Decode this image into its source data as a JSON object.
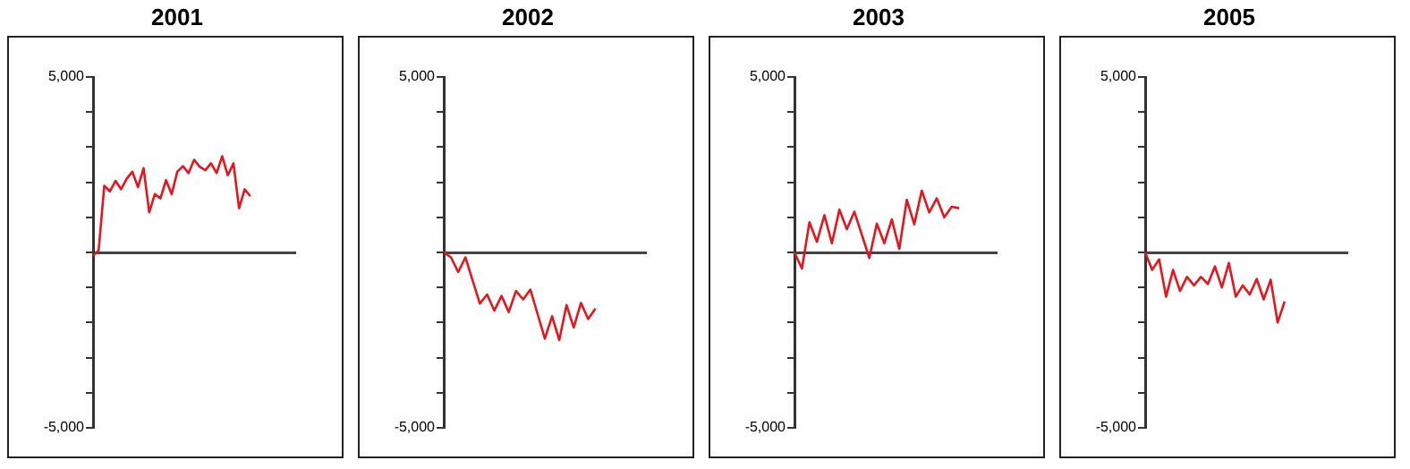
{
  "chart_data": [
    {
      "type": "line",
      "title": "2001",
      "color": "#e8141c",
      "marker": "none",
      "line_style": "solid",
      "tick_labels": "y",
      "ylim": [
        -5000,
        5000
      ],
      "yticks": [
        {
          "value": 5000,
          "label": "5,000"
        },
        {
          "value": 4000,
          "label": null
        },
        {
          "value": 3000,
          "label": null
        },
        {
          "value": 2000,
          "label": null
        },
        {
          "value": 1000,
          "label": null
        },
        {
          "value": 0,
          "label": null
        },
        {
          "value": -1000,
          "label": null
        },
        {
          "value": -2000,
          "label": null
        },
        {
          "value": -3000,
          "label": null
        },
        {
          "value": -4000,
          "label": null
        },
        {
          "value": -5000,
          "label": "-5,000"
        }
      ],
      "categories": [
        null,
        null,
        null,
        null,
        null,
        null,
        null,
        null,
        null,
        null,
        null,
        null,
        null,
        null,
        null,
        null,
        null,
        null,
        null,
        null,
        null,
        null,
        null,
        null,
        null,
        null,
        null,
        null,
        null,
        null,
        null,
        null,
        null,
        null,
        null,
        null,
        null
      ],
      "values": [
        -100,
        60,
        1900,
        1740,
        2040,
        1800,
        2100,
        2300,
        1860,
        2400,
        1140,
        1660,
        1540,
        2060,
        1660,
        2300,
        2460,
        2260,
        2640,
        2440,
        2340,
        2540,
        2260,
        2740,
        2200,
        2540,
        1260,
        1800,
        1600,
        null,
        null,
        null,
        null,
        null,
        null,
        null,
        null
      ]
    },
    {
      "type": "line",
      "title": "2002",
      "color": "#e8141c",
      "marker": "none",
      "line_style": "solid",
      "tick_labels": "y",
      "ylim": [
        -5000,
        5000
      ],
      "yticks": [
        {
          "value": 5000,
          "label": "5,000"
        },
        {
          "value": 4000,
          "label": null
        },
        {
          "value": 3000,
          "label": null
        },
        {
          "value": 2000,
          "label": null
        },
        {
          "value": 1000,
          "label": null
        },
        {
          "value": 0,
          "label": null
        },
        {
          "value": -1000,
          "label": null
        },
        {
          "value": -2000,
          "label": null
        },
        {
          "value": -3000,
          "label": null
        },
        {
          "value": -4000,
          "label": null
        },
        {
          "value": -5000,
          "label": "-5,000"
        }
      ],
      "categories": [
        null,
        null,
        null,
        null,
        null,
        null,
        null,
        null,
        null,
        null,
        null,
        null,
        null,
        null,
        null,
        null,
        null,
        null,
        null,
        null,
        null,
        null,
        null,
        null,
        null,
        null,
        null,
        null,
        null
      ],
      "values": [
        0,
        -140,
        -560,
        -140,
        -800,
        -1460,
        -1200,
        -1660,
        -1240,
        -1700,
        -1100,
        -1340,
        -1060,
        -1760,
        -2460,
        -1820,
        -2500,
        -1500,
        -2140,
        -1440,
        -1900,
        -1600,
        null,
        null,
        null,
        null,
        null,
        null,
        null
      ]
    },
    {
      "type": "line",
      "title": "2003",
      "color": "#e8141c",
      "marker": "none",
      "line_style": "solid",
      "tick_labels": "y",
      "ylim": [
        -5000,
        5000
      ],
      "yticks": [
        {
          "value": 5000,
          "label": "5,000"
        },
        {
          "value": 4000,
          "label": null
        },
        {
          "value": 3000,
          "label": null
        },
        {
          "value": 2000,
          "label": null
        },
        {
          "value": 1000,
          "label": null
        },
        {
          "value": 0,
          "label": null
        },
        {
          "value": -1000,
          "label": null
        },
        {
          "value": -2000,
          "label": null
        },
        {
          "value": -3000,
          "label": null
        },
        {
          "value": -4000,
          "label": null
        },
        {
          "value": -5000,
          "label": "-5,000"
        }
      ],
      "categories": [
        null,
        null,
        null,
        null,
        null,
        null,
        null,
        null,
        null,
        null,
        null,
        null,
        null,
        null,
        null,
        null,
        null,
        null,
        null,
        null,
        null,
        null,
        null,
        null,
        null,
        null,
        null,
        null
      ],
      "values": [
        0,
        -460,
        860,
        300,
        1060,
        260,
        1220,
        660,
        1160,
        500,
        -160,
        820,
        260,
        940,
        100,
        1500,
        800,
        1760,
        1140,
        1540,
        1000,
        1300,
        1260,
        null,
        null,
        null,
        null,
        null
      ]
    },
    {
      "type": "line",
      "title": "2005",
      "color": "#e8141c",
      "marker": "none",
      "line_style": "solid",
      "tick_labels": "y",
      "ylim": [
        -5000,
        5000
      ],
      "yticks": [
        {
          "value": 5000,
          "label": "5,000"
        },
        {
          "value": 4000,
          "label": null
        },
        {
          "value": 3000,
          "label": null
        },
        {
          "value": 2000,
          "label": null
        },
        {
          "value": 1000,
          "label": null
        },
        {
          "value": 0,
          "label": null
        },
        {
          "value": -1000,
          "label": null
        },
        {
          "value": -2000,
          "label": null
        },
        {
          "value": -3000,
          "label": null
        },
        {
          "value": -4000,
          "label": null
        },
        {
          "value": -5000,
          "label": "-5,000"
        }
      ],
      "categories": [
        null,
        null,
        null,
        null,
        null,
        null,
        null,
        null,
        null,
        null,
        null,
        null,
        null,
        null,
        null,
        null,
        null,
        null,
        null,
        null,
        null,
        null,
        null,
        null,
        null,
        null,
        null,
        null,
        null,
        null
      ],
      "values": [
        0,
        -500,
        -200,
        -1260,
        -500,
        -1100,
        -700,
        -940,
        -700,
        -900,
        -400,
        -1000,
        -300,
        -1260,
        -940,
        -1200,
        -760,
        -1340,
        -780,
        -2000,
        -1400,
        null,
        null,
        null,
        null,
        null,
        null,
        null,
        null,
        null
      ]
    }
  ]
}
